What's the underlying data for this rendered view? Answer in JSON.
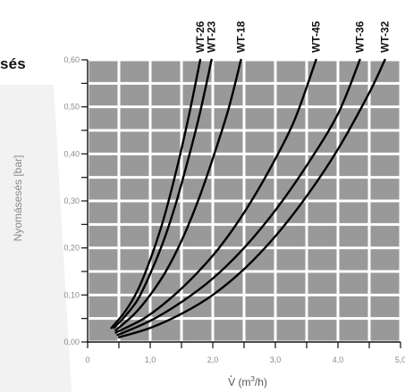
{
  "heading_fragment": "sés",
  "chart_data": {
    "type": "line",
    "title": "",
    "xlabel": "V̇ (m³/h)",
    "xlabel_parts": {
      "symbol": "V",
      "unit_open": " (m",
      "unit_sup": "3",
      "unit_close": "/h)"
    },
    "ylabel": "Nyomásesés [bar]",
    "xlim": [
      0,
      5
    ],
    "ylim": [
      0,
      0.6
    ],
    "x_ticks": [
      0,
      0.5,
      1,
      1.5,
      2,
      2.5,
      3,
      3.5,
      4,
      4.5,
      5
    ],
    "x_tick_labels": [
      {
        "value": 0,
        "label": "0"
      },
      {
        "value": 1,
        "label": "1,0"
      },
      {
        "value": 2,
        "label": "2,0"
      },
      {
        "value": 3,
        "label": "3,0"
      },
      {
        "value": 4,
        "label": "4,0"
      },
      {
        "value": 5,
        "label": "5,0"
      }
    ],
    "y_ticks": [
      0,
      0.05,
      0.1,
      0.15,
      0.2,
      0.25,
      0.3,
      0.35,
      0.4,
      0.45,
      0.5,
      0.55,
      0.6
    ],
    "y_tick_labels": [
      {
        "value": 0,
        "label": "0,00"
      },
      {
        "value": 0.1,
        "label": "0,10"
      },
      {
        "value": 0.2,
        "label": "0,20"
      },
      {
        "value": 0.3,
        "label": "0,30"
      },
      {
        "value": 0.4,
        "label": "0,40"
      },
      {
        "value": 0.5,
        "label": "0,50"
      },
      {
        "value": 0.6,
        "label": "0,60"
      }
    ],
    "grid": true,
    "colors": {
      "plot_bg": "#999999",
      "grid": "#ffffff",
      "series": "#000000",
      "wedge": "#f2f2f2"
    },
    "series": [
      {
        "name": "WT-26",
        "x": [
          0.38,
          0.6,
          0.8,
          1.0,
          1.2,
          1.4,
          1.6,
          1.8
        ],
        "y": [
          0.03,
          0.065,
          0.11,
          0.175,
          0.255,
          0.355,
          0.47,
          0.6
        ]
      },
      {
        "name": "WT-23",
        "x": [
          0.42,
          0.6,
          0.8,
          1.0,
          1.2,
          1.4,
          1.6,
          1.8,
          1.98
        ],
        "y": [
          0.03,
          0.055,
          0.09,
          0.145,
          0.21,
          0.29,
          0.385,
          0.49,
          0.6
        ]
      },
      {
        "name": "WT-18",
        "x": [
          0.45,
          0.75,
          1.0,
          1.25,
          1.5,
          1.75,
          2.0,
          2.25,
          2.45
        ],
        "y": [
          0.025,
          0.06,
          0.1,
          0.15,
          0.215,
          0.295,
          0.39,
          0.495,
          0.6
        ]
      },
      {
        "name": "WT-45",
        "x": [
          0.45,
          0.9,
          1.3,
          1.7,
          2.1,
          2.5,
          2.9,
          3.3,
          3.65
        ],
        "y": [
          0.02,
          0.05,
          0.09,
          0.14,
          0.2,
          0.275,
          0.365,
          0.47,
          0.6
        ]
      },
      {
        "name": "WT-36",
        "x": [
          0.48,
          1.0,
          1.5,
          2.0,
          2.5,
          3.0,
          3.5,
          4.0,
          4.35
        ],
        "y": [
          0.015,
          0.045,
          0.085,
          0.135,
          0.2,
          0.28,
          0.375,
          0.485,
          0.6
        ]
      },
      {
        "name": "WT-32",
        "x": [
          0.5,
          1.0,
          1.5,
          2.0,
          2.5,
          3.0,
          3.5,
          4.0,
          4.5,
          4.75
        ],
        "y": [
          0.01,
          0.03,
          0.06,
          0.1,
          0.155,
          0.225,
          0.31,
          0.41,
          0.53,
          0.6
        ]
      }
    ]
  }
}
